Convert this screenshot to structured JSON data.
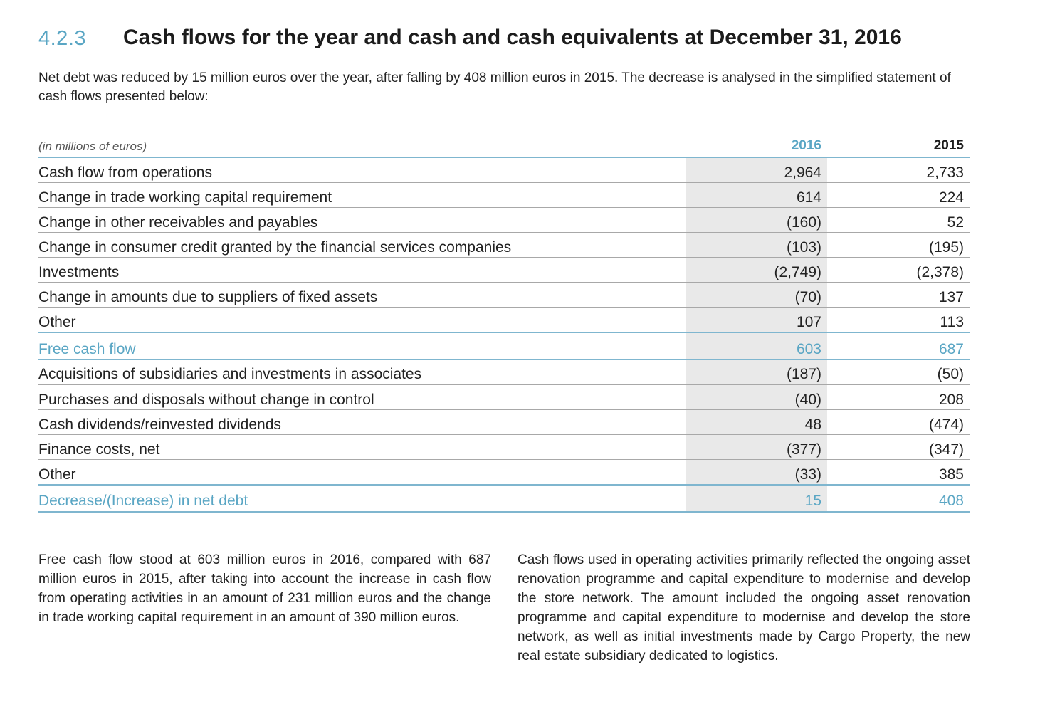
{
  "section": {
    "number": "4.2.3",
    "title": "Cash flows for the year and cash and cash equivalents at December 31, 2016"
  },
  "intro": "Net debt was reduced by 15 million euros over the year, after falling by 408 million euros in 2015. The decrease is analysed in the simplified statement of cash flows presented below:",
  "table": {
    "unit_label": "(in millions of euros)",
    "col_2016": "2016",
    "col_2015": "2015",
    "rows": [
      {
        "label": "Cash flow from operations",
        "v2016": "2,964",
        "v2015": "2,733"
      },
      {
        "label": "Change in trade working capital requirement",
        "v2016": "614",
        "v2015": "224"
      },
      {
        "label": "Change in other receivables and payables",
        "v2016": "(160)",
        "v2015": "52"
      },
      {
        "label": "Change in consumer credit granted by the financial services companies",
        "v2016": "(103)",
        "v2015": "(195)"
      },
      {
        "label": "Investments",
        "v2016": "(2,749)",
        "v2015": "(2,378)"
      },
      {
        "label": "Change in amounts due to suppliers of fixed assets",
        "v2016": "(70)",
        "v2015": "137"
      },
      {
        "label": "Other",
        "v2016": "107",
        "v2015": "113"
      },
      {
        "label": "Free cash flow",
        "v2016": "603",
        "v2015": "687"
      },
      {
        "label": "Acquisitions of subsidiaries and investments in associates",
        "v2016": "(187)",
        "v2015": "(50)"
      },
      {
        "label": "Purchases and disposals without change in control",
        "v2016": "(40)",
        "v2015": "208"
      },
      {
        "label": "Cash dividends/reinvested dividends",
        "v2016": "48",
        "v2015": "(474)"
      },
      {
        "label": "Finance costs, net",
        "v2016": "(377)",
        "v2015": "(347)"
      },
      {
        "label": "Other",
        "v2016": "(33)",
        "v2015": "385"
      },
      {
        "label": "Decrease/(Increase) in net debt",
        "v2016": "15",
        "v2015": "408"
      }
    ]
  },
  "paragraph_left": "Free cash flow stood at 603 million euros in 2016, compared with 687 million euros in 2015, after taking into account the increase in cash flow from operating activities in an amount of 231 million euros and the change in trade working capital requirement in an amount of 390 million euros.",
  "paragraph_right": "Cash flows used in operating activities primarily reflected the ongoing asset renovation programme and capital expenditure to modernise and develop the store network. The amount included the ongoing asset renovation programme and capital expenditure to modernise and develop the store network, as well as initial investments made by Cargo Property, the new real estate subsidiary dedicated to logistics.",
  "colors": {
    "accent": "#5aa6c4",
    "rule": "#7fb6cf",
    "shade": "#e9e9e9"
  }
}
